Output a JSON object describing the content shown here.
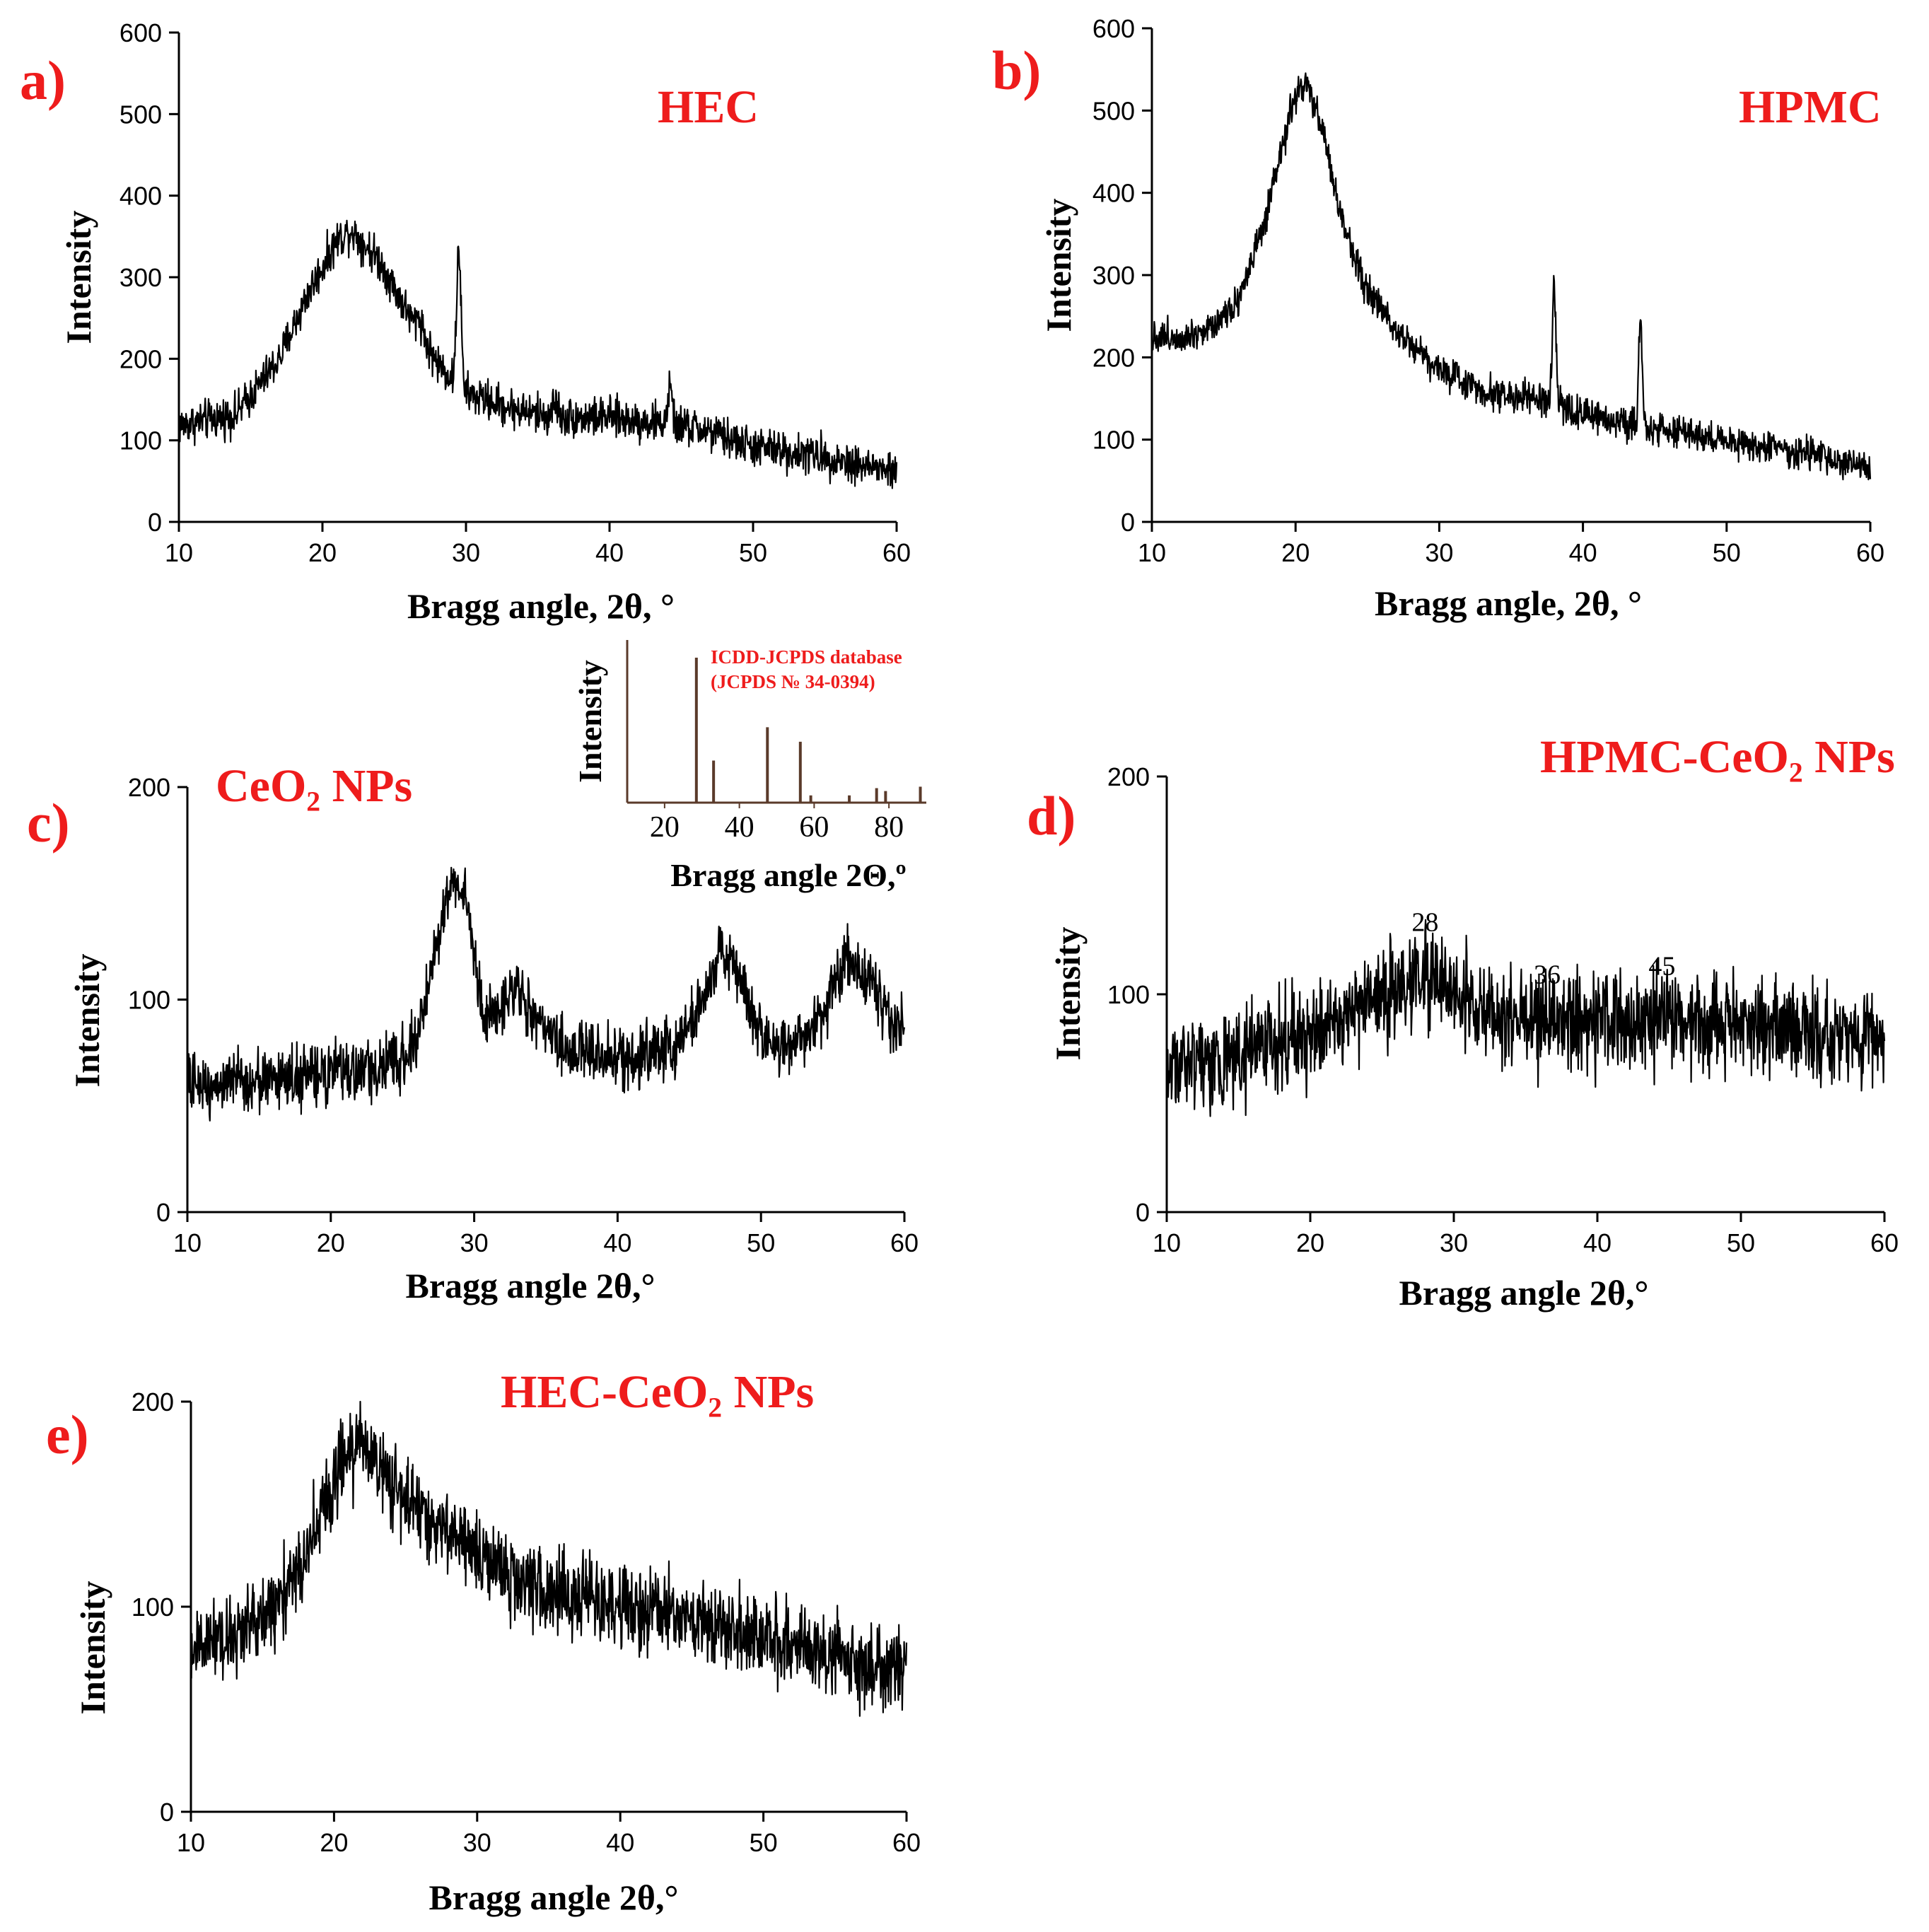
{
  "figure": {
    "panels": [
      {
        "id": "a",
        "label": "a)"
      },
      {
        "id": "b",
        "label": "b)"
      },
      {
        "id": "c",
        "label": "c)"
      },
      {
        "id": "d",
        "label": "d)"
      },
      {
        "id": "e",
        "label": "e)"
      }
    ]
  },
  "chart_data": [
    {
      "id": "a",
      "type": "line",
      "title": "HEC",
      "xlabel": "Bragg angle, 2θ, °",
      "ylabel": "Intensity",
      "xlim": [
        10,
        60
      ],
      "ylim": [
        0,
        600
      ],
      "xticks": [
        10,
        20,
        30,
        40,
        50,
        60
      ],
      "yticks": [
        0,
        100,
        200,
        300,
        400,
        500,
        600
      ],
      "noise": 12,
      "profile": [
        [
          10,
          118
        ],
        [
          14,
          132
        ],
        [
          17,
          200
        ],
        [
          19,
          280
        ],
        [
          21,
          345
        ],
        [
          22,
          358
        ],
        [
          24,
          320
        ],
        [
          26,
          255
        ],
        [
          28,
          195
        ],
        [
          30,
          158
        ],
        [
          33,
          140
        ],
        [
          36,
          128
        ],
        [
          40,
          128
        ],
        [
          43,
          122
        ],
        [
          46,
          115
        ],
        [
          50,
          92
        ],
        [
          55,
          80
        ],
        [
          60,
          60
        ]
      ],
      "peaks": [
        [
          29.5,
          170,
          0.15
        ],
        [
          44.2,
          45,
          0.15
        ],
        [
          26.8,
          20,
          0.2
        ],
        [
          36.2,
          18,
          0.2
        ]
      ],
      "annotations": [],
      "color": "#000000"
    },
    {
      "id": "b",
      "type": "line",
      "title": "HPMC",
      "xlabel": "Bragg angle, 2θ, °",
      "ylabel": "Intensity",
      "xlim": [
        10,
        60
      ],
      "ylim": [
        0,
        600
      ],
      "xticks": [
        10,
        20,
        30,
        40,
        50,
        60
      ],
      "yticks": [
        0,
        100,
        200,
        300,
        400,
        500,
        600
      ],
      "noise": 10,
      "profile": [
        [
          10,
          225
        ],
        [
          12,
          225
        ],
        [
          14,
          235
        ],
        [
          16,
          270
        ],
        [
          18,
          370
        ],
        [
          19,
          450
        ],
        [
          20,
          520
        ],
        [
          20.8,
          530
        ],
        [
          22,
          470
        ],
        [
          23,
          380
        ],
        [
          25,
          280
        ],
        [
          27,
          235
        ],
        [
          30,
          185
        ],
        [
          33,
          160
        ],
        [
          36,
          150
        ],
        [
          38,
          145
        ],
        [
          40,
          130
        ],
        [
          44,
          118
        ],
        [
          47,
          108
        ],
        [
          50,
          98
        ],
        [
          55,
          85
        ],
        [
          60,
          65
        ]
      ],
      "peaks": [
        [
          38,
          140,
          0.12
        ],
        [
          44,
          125,
          0.12
        ]
      ],
      "annotations": [],
      "color": "#000000"
    },
    {
      "id": "c",
      "type": "line",
      "title": "CeO₂ NPs",
      "xlabel": "Bragg angle  2θ,°",
      "ylabel": "Intensity",
      "xlim": [
        10,
        60
      ],
      "ylim": [
        0,
        200
      ],
      "xticks": [
        10,
        20,
        30,
        40,
        50,
        60
      ],
      "yticks": [
        0,
        100,
        200
      ],
      "noise": 7,
      "profile": [
        [
          10,
          60
        ],
        [
          15,
          62
        ],
        [
          20,
          65
        ],
        [
          24,
          68
        ],
        [
          26,
          80
        ],
        [
          27.5,
          130
        ],
        [
          28.5,
          160
        ],
        [
          29.5,
          145
        ],
        [
          30.5,
          95
        ],
        [
          31.5,
          92
        ],
        [
          33,
          108
        ],
        [
          34,
          92
        ],
        [
          36,
          78
        ],
        [
          40,
          72
        ],
        [
          44,
          78
        ],
        [
          46,
          100
        ],
        [
          47.3,
          125
        ],
        [
          48.5,
          110
        ],
        [
          50,
          82
        ],
        [
          52,
          78
        ],
        [
          54,
          90
        ],
        [
          56,
          118
        ],
        [
          57.5,
          110
        ],
        [
          59,
          92
        ],
        [
          60,
          85
        ]
      ],
      "peaks": [],
      "annotations": [],
      "color": "#000000",
      "inset": {
        "title_line1": "ICDD-JCPDS database",
        "title_line2": "(JCPDS № 34-0394)",
        "xlabel": "Bragg angle 2Θ,º",
        "ylabel": "Intensity",
        "xlim": [
          10,
          90
        ],
        "xticks": [
          20,
          40,
          60,
          80
        ],
        "stick_positions": [
          28.5,
          33.1,
          47.5,
          56.3,
          59.1,
          69.4,
          76.7,
          79.1,
          88.4
        ],
        "stick_heights": [
          100,
          29,
          52,
          42,
          5,
          5,
          10,
          8,
          11
        ]
      }
    },
    {
      "id": "d",
      "type": "line",
      "title": "HPMC-CeO₂ NPs",
      "xlabel": "Bragg angle  2θ,°",
      "ylabel": "Intensity",
      "xlim": [
        10,
        60
      ],
      "ylim": [
        0,
        200
      ],
      "xticks": [
        10,
        20,
        30,
        40,
        50,
        60
      ],
      "yticks": [
        0,
        100,
        200
      ],
      "noise": 11,
      "profile": [
        [
          10,
          68
        ],
        [
          15,
          72
        ],
        [
          20,
          82
        ],
        [
          24,
          95
        ],
        [
          27,
          105
        ],
        [
          28,
          108
        ],
        [
          30,
          100
        ],
        [
          33,
          92
        ],
        [
          36,
          88
        ],
        [
          40,
          86
        ],
        [
          45,
          88
        ],
        [
          50,
          86
        ],
        [
          55,
          84
        ],
        [
          60,
          80
        ]
      ],
      "peaks": [],
      "annotations": [
        {
          "text": "28",
          "x": 28,
          "y": 129
        },
        {
          "text": "36",
          "x": 36.5,
          "y": 105
        },
        {
          "text": "45",
          "x": 44.5,
          "y": 109
        }
      ],
      "color": "#000000"
    },
    {
      "id": "e",
      "type": "line",
      "title": "HEC-CeO₂ NPs",
      "xlabel": "Bragg angle  2θ,°",
      "ylabel": "Intensity",
      "xlim": [
        10,
        60
      ],
      "ylim": [
        0,
        200
      ],
      "xticks": [
        10,
        20,
        30,
        40,
        50,
        60
      ],
      "yticks": [
        0,
        100,
        200
      ],
      "noise": 10,
      "profile": [
        [
          10,
          80
        ],
        [
          14,
          88
        ],
        [
          17,
          110
        ],
        [
          19,
          145
        ],
        [
          21,
          175
        ],
        [
          22,
          180
        ],
        [
          24,
          160
        ],
        [
          27,
          140
        ],
        [
          30,
          125
        ],
        [
          33,
          112
        ],
        [
          36,
          105
        ],
        [
          40,
          100
        ],
        [
          44,
          95
        ],
        [
          48,
          88
        ],
        [
          52,
          82
        ],
        [
          56,
          75
        ],
        [
          60,
          68
        ]
      ],
      "peaks": [],
      "annotations": [],
      "color": "#000000"
    }
  ]
}
